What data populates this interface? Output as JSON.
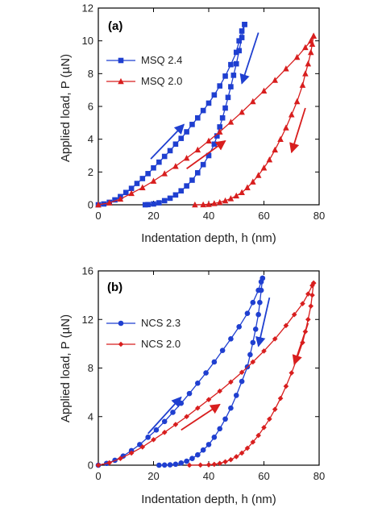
{
  "colors": {
    "blue": "#1f3fd0",
    "red": "#d81e1e",
    "axis": "#000000"
  },
  "chart_data": [
    {
      "type": "line",
      "panel_label": "(a)",
      "xlabel": "Indentation depth, h (nm)",
      "ylabel": "Applied load, P (µN)",
      "xlim": [
        0,
        80
      ],
      "ylim": [
        0,
        12
      ],
      "x_ticks": [
        0,
        20,
        40,
        60,
        80
      ],
      "y_ticks": [
        0,
        2,
        4,
        6,
        8,
        10,
        12
      ],
      "legend_position": "top-left",
      "series": [
        {
          "name": "MSQ 2.4",
          "color": "#1f3fd0",
          "marker": "square",
          "loading": [
            [
              0,
              0
            ],
            [
              2,
              0.05
            ],
            [
              4,
              0.15
            ],
            [
              6,
              0.3
            ],
            [
              8,
              0.5
            ],
            [
              10,
              0.75
            ],
            [
              12,
              1.0
            ],
            [
              14,
              1.3
            ],
            [
              16,
              1.6
            ],
            [
              18,
              1.9
            ],
            [
              20,
              2.25
            ],
            [
              22,
              2.6
            ],
            [
              24,
              2.95
            ],
            [
              26,
              3.3
            ],
            [
              28,
              3.7
            ],
            [
              30,
              4.05
            ],
            [
              32,
              4.45
            ],
            [
              34,
              4.9
            ],
            [
              36,
              5.3
            ],
            [
              38,
              5.75
            ],
            [
              40,
              6.2
            ],
            [
              42,
              6.7
            ],
            [
              44,
              7.25
            ],
            [
              46,
              7.85
            ],
            [
              48,
              8.55
            ],
            [
              50,
              9.3
            ],
            [
              51,
              10.0
            ],
            [
              52,
              10.6
            ],
            [
              53,
              11.0
            ]
          ],
          "unloading": [
            [
              53,
              11.0
            ],
            [
              52,
              10.2
            ],
            [
              51,
              9.4
            ],
            [
              50,
              8.6
            ],
            [
              49,
              7.9
            ],
            [
              48,
              7.2
            ],
            [
              47,
              6.55
            ],
            [
              46,
              5.9
            ],
            [
              45,
              5.3
            ],
            [
              44,
              4.75
            ],
            [
              43,
              4.2
            ],
            [
              42,
              3.7
            ],
            [
              40,
              3.0
            ],
            [
              38,
              2.45
            ],
            [
              36,
              1.95
            ],
            [
              34,
              1.5
            ],
            [
              32,
              1.15
            ],
            [
              30,
              0.85
            ],
            [
              28,
              0.6
            ],
            [
              26,
              0.4
            ],
            [
              24,
              0.25
            ],
            [
              22,
              0.12
            ],
            [
              20,
              0.05
            ],
            [
              18,
              0.01
            ],
            [
              17,
              0
            ]
          ]
        },
        {
          "name": "MSQ 2.0",
          "color": "#d81e1e",
          "marker": "triangle",
          "loading": [
            [
              0,
              0
            ],
            [
              4,
              0.12
            ],
            [
              8,
              0.35
            ],
            [
              12,
              0.7
            ],
            [
              16,
              1.05
            ],
            [
              20,
              1.45
            ],
            [
              24,
              1.9
            ],
            [
              28,
              2.35
            ],
            [
              32,
              2.85
            ],
            [
              36,
              3.35
            ],
            [
              40,
              3.9
            ],
            [
              44,
              4.45
            ],
            [
              48,
              5.05
            ],
            [
              52,
              5.65
            ],
            [
              56,
              6.3
            ],
            [
              60,
              6.95
            ],
            [
              64,
              7.6
            ],
            [
              68,
              8.3
            ],
            [
              72,
              9.0
            ],
            [
              75,
              9.6
            ],
            [
              77,
              10.0
            ],
            [
              78,
              10.3
            ]
          ],
          "unloading": [
            [
              78,
              10.3
            ],
            [
              77.5,
              9.8
            ],
            [
              77,
              9.3
            ],
            [
              76,
              8.6
            ],
            [
              75,
              8.0
            ],
            [
              74,
              7.3
            ],
            [
              72,
              6.3
            ],
            [
              70,
              5.5
            ],
            [
              68,
              4.7
            ],
            [
              66,
              4.0
            ],
            [
              64,
              3.35
            ],
            [
              62,
              2.75
            ],
            [
              60,
              2.25
            ],
            [
              58,
              1.8
            ],
            [
              56,
              1.4
            ],
            [
              54,
              1.05
            ],
            [
              52,
              0.75
            ],
            [
              50,
              0.55
            ],
            [
              48,
              0.38
            ],
            [
              46,
              0.25
            ],
            [
              44,
              0.15
            ],
            [
              42,
              0.08
            ],
            [
              40,
              0.03
            ],
            [
              38,
              0.01
            ],
            [
              35,
              0
            ]
          ]
        }
      ],
      "arrows": [
        {
          "series": "MSQ 2.4",
          "from": [
            19,
            2.8
          ],
          "to": [
            31,
            4.9
          ]
        },
        {
          "series": "MSQ 2.4",
          "from": [
            58,
            10.5
          ],
          "to": [
            52,
            7.4
          ]
        },
        {
          "series": "MSQ 2.0",
          "from": [
            32,
            2.2
          ],
          "to": [
            46,
            3.9
          ]
        },
        {
          "series": "MSQ 2.0",
          "from": [
            75,
            5.9
          ],
          "to": [
            70,
            3.2
          ]
        }
      ]
    },
    {
      "type": "line",
      "panel_label": "(b)",
      "xlabel": "Indentation depth, h (nm)",
      "ylabel": "Applied load, P (µN)",
      "xlim": [
        0,
        80
      ],
      "ylim": [
        0,
        16
      ],
      "x_ticks": [
        0,
        20,
        40,
        60,
        80
      ],
      "y_ticks": [
        0,
        4,
        8,
        12,
        16
      ],
      "legend_position": "top-left",
      "series": [
        {
          "name": "NCS 2.3",
          "color": "#1f3fd0",
          "marker": "circle",
          "loading": [
            [
              0,
              0
            ],
            [
              3,
              0.15
            ],
            [
              6,
              0.4
            ],
            [
              9,
              0.75
            ],
            [
              12,
              1.2
            ],
            [
              15,
              1.7
            ],
            [
              18,
              2.3
            ],
            [
              21,
              2.9
            ],
            [
              24,
              3.6
            ],
            [
              27,
              4.35
            ],
            [
              30,
              5.1
            ],
            [
              33,
              5.9
            ],
            [
              36,
              6.75
            ],
            [
              39,
              7.6
            ],
            [
              42,
              8.5
            ],
            [
              45,
              9.45
            ],
            [
              48,
              10.4
            ],
            [
              51,
              11.4
            ],
            [
              54,
              12.5
            ],
            [
              56,
              13.4
            ],
            [
              58,
              14.4
            ],
            [
              59,
              15.1
            ],
            [
              59.5,
              15.4
            ]
          ],
          "unloading": [
            [
              59.5,
              15.4
            ],
            [
              59,
              14.4
            ],
            [
              58.5,
              13.4
            ],
            [
              58,
              12.4
            ],
            [
              57,
              11.2
            ],
            [
              56,
              10.1
            ],
            [
              55,
              9.1
            ],
            [
              54,
              8.1
            ],
            [
              52,
              6.9
            ],
            [
              50,
              5.75
            ],
            [
              48,
              4.7
            ],
            [
              46,
              3.8
            ],
            [
              44,
              3.0
            ],
            [
              42,
              2.3
            ],
            [
              40,
              1.7
            ],
            [
              38,
              1.25
            ],
            [
              36,
              0.85
            ],
            [
              34,
              0.55
            ],
            [
              32,
              0.33
            ],
            [
              30,
              0.18
            ],
            [
              28,
              0.08
            ],
            [
              26,
              0.03
            ],
            [
              24,
              0.01
            ],
            [
              22,
              0
            ]
          ]
        },
        {
          "name": "NCS 2.0",
          "color": "#d81e1e",
          "marker": "diamond",
          "loading": [
            [
              0,
              0
            ],
            [
              4,
              0.2
            ],
            [
              8,
              0.55
            ],
            [
              12,
              1.0
            ],
            [
              16,
              1.5
            ],
            [
              20,
              2.1
            ],
            [
              24,
              2.7
            ],
            [
              28,
              3.35
            ],
            [
              32,
              4.0
            ],
            [
              36,
              4.7
            ],
            [
              40,
              5.4
            ],
            [
              44,
              6.1
            ],
            [
              48,
              6.85
            ],
            [
              52,
              7.65
            ],
            [
              56,
              8.5
            ],
            [
              60,
              9.4
            ],
            [
              64,
              10.4
            ],
            [
              68,
              11.5
            ],
            [
              71,
              12.4
            ],
            [
              74,
              13.3
            ],
            [
              76,
              14.1
            ],
            [
              77.5,
              14.8
            ],
            [
              78,
              15.0
            ]
          ],
          "unloading": [
            [
              78,
              15.0
            ],
            [
              77.5,
              14.0
            ],
            [
              77,
              13.1
            ],
            [
              76,
              12.0
            ],
            [
              75,
              11.0
            ],
            [
              74,
              10.1
            ],
            [
              72,
              8.8
            ],
            [
              70,
              7.6
            ],
            [
              68,
              6.5
            ],
            [
              66,
              5.5
            ],
            [
              64,
              4.6
            ],
            [
              62,
              3.8
            ],
            [
              60,
              3.1
            ],
            [
              58,
              2.45
            ],
            [
              56,
              1.9
            ],
            [
              54,
              1.4
            ],
            [
              52,
              1.0
            ],
            [
              50,
              0.7
            ],
            [
              48,
              0.45
            ],
            [
              46,
              0.28
            ],
            [
              44,
              0.15
            ],
            [
              42,
              0.07
            ],
            [
              40,
              0.03
            ],
            [
              37,
              0.01
            ],
            [
              33,
              0
            ]
          ]
        }
      ],
      "arrows": [
        {
          "series": "NCS 2.3",
          "from": [
            18,
            2.6
          ],
          "to": [
            30,
            5.6
          ]
        },
        {
          "series": "NCS 2.3",
          "from": [
            62,
            13.8
          ],
          "to": [
            58,
            9.8
          ]
        },
        {
          "series": "NCS 2.0",
          "from": [
            30,
            2.9
          ],
          "to": [
            44,
            5.0
          ]
        },
        {
          "series": "NCS 2.0",
          "from": [
            76,
            11.7
          ],
          "to": [
            71,
            8.3
          ]
        }
      ]
    }
  ]
}
